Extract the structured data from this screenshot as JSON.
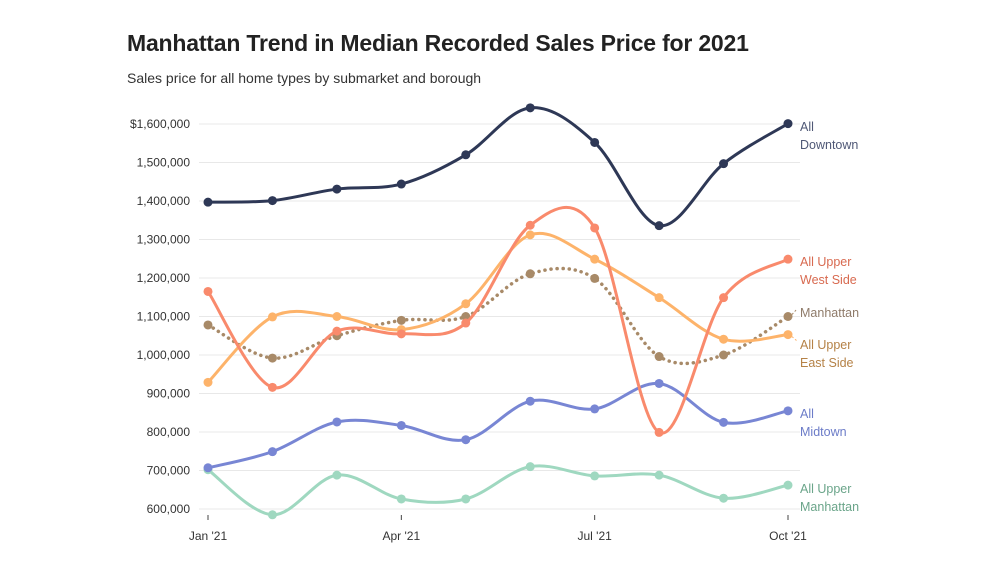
{
  "header": {
    "title": "Manhattan Trend in Median Recorded Sales Price for 2021",
    "subtitle": "Sales price for all home types by submarket and borough"
  },
  "chart_data": {
    "type": "line",
    "title": "Manhattan Trend in Median Recorded Sales Price for 2021",
    "subtitle": "Sales price for all home types by submarket and borough",
    "xlabel": "",
    "ylabel": "",
    "x": [
      "Jan '21",
      "Feb '21",
      "Mar '21",
      "Apr '21",
      "May '21",
      "Jun '21",
      "Jul '21",
      "Aug '21",
      "Sep '21",
      "Oct '21"
    ],
    "x_tick_labels": [
      {
        "index": 0,
        "label": "Jan '21"
      },
      {
        "index": 3,
        "label": "Apr '21"
      },
      {
        "index": 6,
        "label": "Jul '21"
      },
      {
        "index": 9,
        "label": "Oct '21"
      }
    ],
    "y_ticks": [
      {
        "value": 1600000,
        "label": "$1,600,000"
      },
      {
        "value": 1500000,
        "label": "1,500,000"
      },
      {
        "value": 1400000,
        "label": "1,400,000"
      },
      {
        "value": 1300000,
        "label": "1,300,000"
      },
      {
        "value": 1200000,
        "label": "1,200,000"
      },
      {
        "value": 1100000,
        "label": "1,100,000"
      },
      {
        "value": 1000000,
        "label": "1,000,000"
      },
      {
        "value": 900000,
        "label": "900,000"
      },
      {
        "value": 800000,
        "label": "800,000"
      },
      {
        "value": 700000,
        "label": "700,000"
      },
      {
        "value": 600000,
        "label": "600,000"
      }
    ],
    "ylim": [
      600000,
      1600000
    ],
    "grid": true,
    "legend": "direct labels at right end of lines",
    "series": [
      {
        "name": "All Downtown",
        "label_lines": [
          "All",
          "Downtown"
        ],
        "color": "#2e3856",
        "label_color": "#4f5876",
        "dashed": false,
        "values": [
          1397000,
          1401000,
          1431000,
          1444000,
          1520000,
          1642000,
          1552000,
          1336000,
          1497000,
          1601000
        ]
      },
      {
        "name": "All Upper West Side",
        "label_lines": [
          "All Upper",
          "West Side"
        ],
        "color": "#f98a6c",
        "label_color": "#d86a50",
        "dashed": false,
        "values": [
          1165000,
          916000,
          1062000,
          1055000,
          1083000,
          1337000,
          1330000,
          799000,
          1149000,
          1249000
        ]
      },
      {
        "name": "All Upper East Side",
        "label_lines": [
          "All Upper",
          "East Side"
        ],
        "color": "#fdb36a",
        "label_color": "#b58247",
        "dashed": false,
        "values": [
          929000,
          1099000,
          1100000,
          1066000,
          1133000,
          1312000,
          1249000,
          1149000,
          1041000,
          1053000
        ]
      },
      {
        "name": "Manhattan",
        "label_lines": [
          "Manhattan"
        ],
        "color": "#a88a68",
        "label_color": "#8f7b6a",
        "dashed": true,
        "values": [
          1078000,
          992000,
          1050000,
          1090000,
          1100000,
          1211000,
          1199000,
          996000,
          1000000,
          1100000
        ]
      },
      {
        "name": "All Midtown",
        "label_lines": [
          "All",
          "Midtown"
        ],
        "color": "#7886d4",
        "label_color": "#6c7cc8",
        "dashed": false,
        "values": [
          707000,
          749000,
          826000,
          817000,
          780000,
          880000,
          860000,
          926000,
          825000,
          855000
        ]
      },
      {
        "name": "All Upper Manhattan",
        "label_lines": [
          "All Upper",
          "Manhattan"
        ],
        "color": "#9fd8c0",
        "label_color": "#6ba58a",
        "dashed": false,
        "values": [
          702000,
          585000,
          688000,
          626000,
          626000,
          710000,
          686000,
          688000,
          628000,
          662000
        ]
      }
    ]
  }
}
